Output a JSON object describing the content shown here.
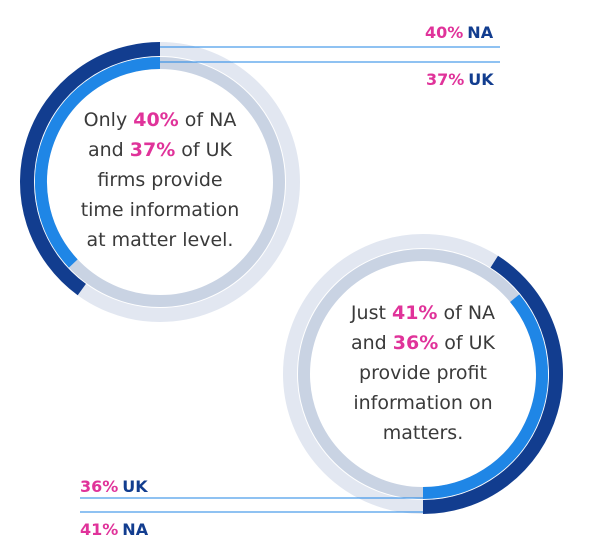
{
  "colors": {
    "track": "#e2e7f1",
    "track_inner": "#c9d3e3",
    "na": "#123d8f",
    "uk": "#1f86e6",
    "accent": "#e0339a",
    "text": "#3a3a3a",
    "leader": "#1f86e6"
  },
  "chart_data": [
    {
      "type": "radial-bar",
      "series": [
        {
          "name": "NA",
          "value": 40
        },
        {
          "name": "UK",
          "value": 37
        }
      ],
      "labels": [
        {
          "pct": "40%",
          "region": "NA"
        },
        {
          "pct": "37%",
          "region": "UK"
        }
      ],
      "text": {
        "l1a": "Only ",
        "l1p": "40%",
        "l1b": " of NA",
        "l2a": "and ",
        "l2p": "37%",
        "l2b": " of UK",
        "l3": "firms provide",
        "l4": "time information",
        "l5": "at matter level."
      }
    },
    {
      "type": "radial-bar",
      "series": [
        {
          "name": "NA",
          "value": 41
        },
        {
          "name": "UK",
          "value": 36
        }
      ],
      "labels": [
        {
          "pct": "36%",
          "region": "UK"
        },
        {
          "pct": "41%",
          "region": "NA"
        }
      ],
      "text": {
        "l1a": "Just ",
        "l1p": "41%",
        "l1b": " of NA",
        "l2a": "and ",
        "l2p": "36%",
        "l2b": " of UK",
        "l3": "provide profit",
        "l4": "information on",
        "l5": "matters."
      }
    }
  ]
}
